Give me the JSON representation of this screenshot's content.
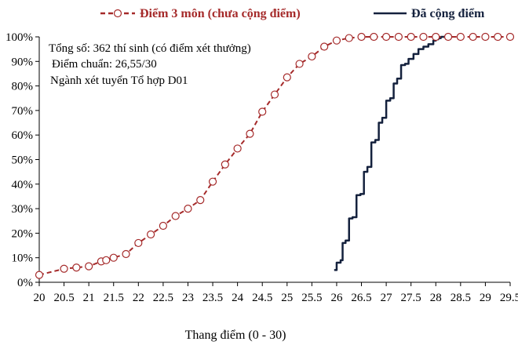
{
  "chart_data": {
    "type": "line",
    "xlabel": "Thang điểm (0 - 30)",
    "ylabel": "",
    "xlim": [
      20,
      29.5
    ],
    "ylim": [
      0,
      100
    ],
    "grid": false,
    "legend_position": "top",
    "x_tick_labels": [
      "20",
      "20.5",
      "21",
      "21.5",
      "22",
      "22.5",
      "23",
      "23.5",
      "24",
      "24.5",
      "25",
      "25.5",
      "26",
      "26.5",
      "27",
      "27.5",
      "28",
      "28.5",
      "29",
      "29.5"
    ],
    "y_tick_labels": [
      "0%",
      "10%",
      "20%",
      "30%",
      "40%",
      "50%",
      "60%",
      "70%",
      "80%",
      "90%",
      "100%"
    ],
    "annotations": [
      "Tổng số: 362 thí sinh  (có điểm xét thưởng)",
      "Điểm chuẩn: 26,55/30",
      "Ngành xét tuyển Tổ hợp D01"
    ],
    "series": [
      {
        "name": "Điểm 3 môn (chưa cộng điểm)",
        "color": "#a52a2a",
        "style": "dashed-circle-markers",
        "x": [
          20,
          20.5,
          20.75,
          21,
          21.25,
          21.35,
          21.5,
          21.75,
          22,
          22.25,
          22.5,
          22.75,
          23,
          23.25,
          23.5,
          23.75,
          24,
          24.25,
          24.5,
          24.75,
          25,
          25.25,
          25.5,
          25.75,
          26,
          26.25,
          26.5,
          26.75,
          27,
          27.25,
          27.5,
          27.75,
          28,
          28.25,
          28.5,
          28.75,
          29,
          29.25,
          29.5
        ],
        "y": [
          3,
          5.5,
          6,
          6.5,
          8.5,
          9,
          10,
          11.5,
          16,
          19.5,
          23,
          27,
          30,
          33.5,
          41,
          48,
          54.5,
          60.5,
          69.5,
          76.5,
          83.5,
          89,
          92,
          96,
          98.5,
          99.5,
          100,
          100,
          100,
          100,
          100,
          100,
          100,
          100,
          100,
          100,
          100,
          100,
          100
        ]
      },
      {
        "name": "Đã cộng điểm",
        "color": "#14213d",
        "style": "step-solid",
        "x": [
          25.95,
          26.0,
          26.08,
          26.12,
          26.18,
          26.25,
          26.32,
          26.4,
          26.48,
          26.55,
          26.62,
          26.7,
          26.78,
          26.85,
          26.92,
          27.0,
          27.08,
          27.15,
          27.22,
          27.3,
          27.38,
          27.45,
          27.55,
          27.65,
          27.75,
          27.85,
          27.95,
          28.0,
          28.05,
          28.1,
          28.2
        ],
        "y": [
          5,
          8,
          9,
          16,
          17,
          26,
          26.5,
          35.5,
          36,
          45,
          47,
          57,
          58,
          65,
          67,
          74,
          75,
          81,
          83,
          88.5,
          89,
          91,
          93,
          95,
          96,
          97,
          98.5,
          99,
          99.5,
          100,
          100
        ]
      }
    ]
  }
}
